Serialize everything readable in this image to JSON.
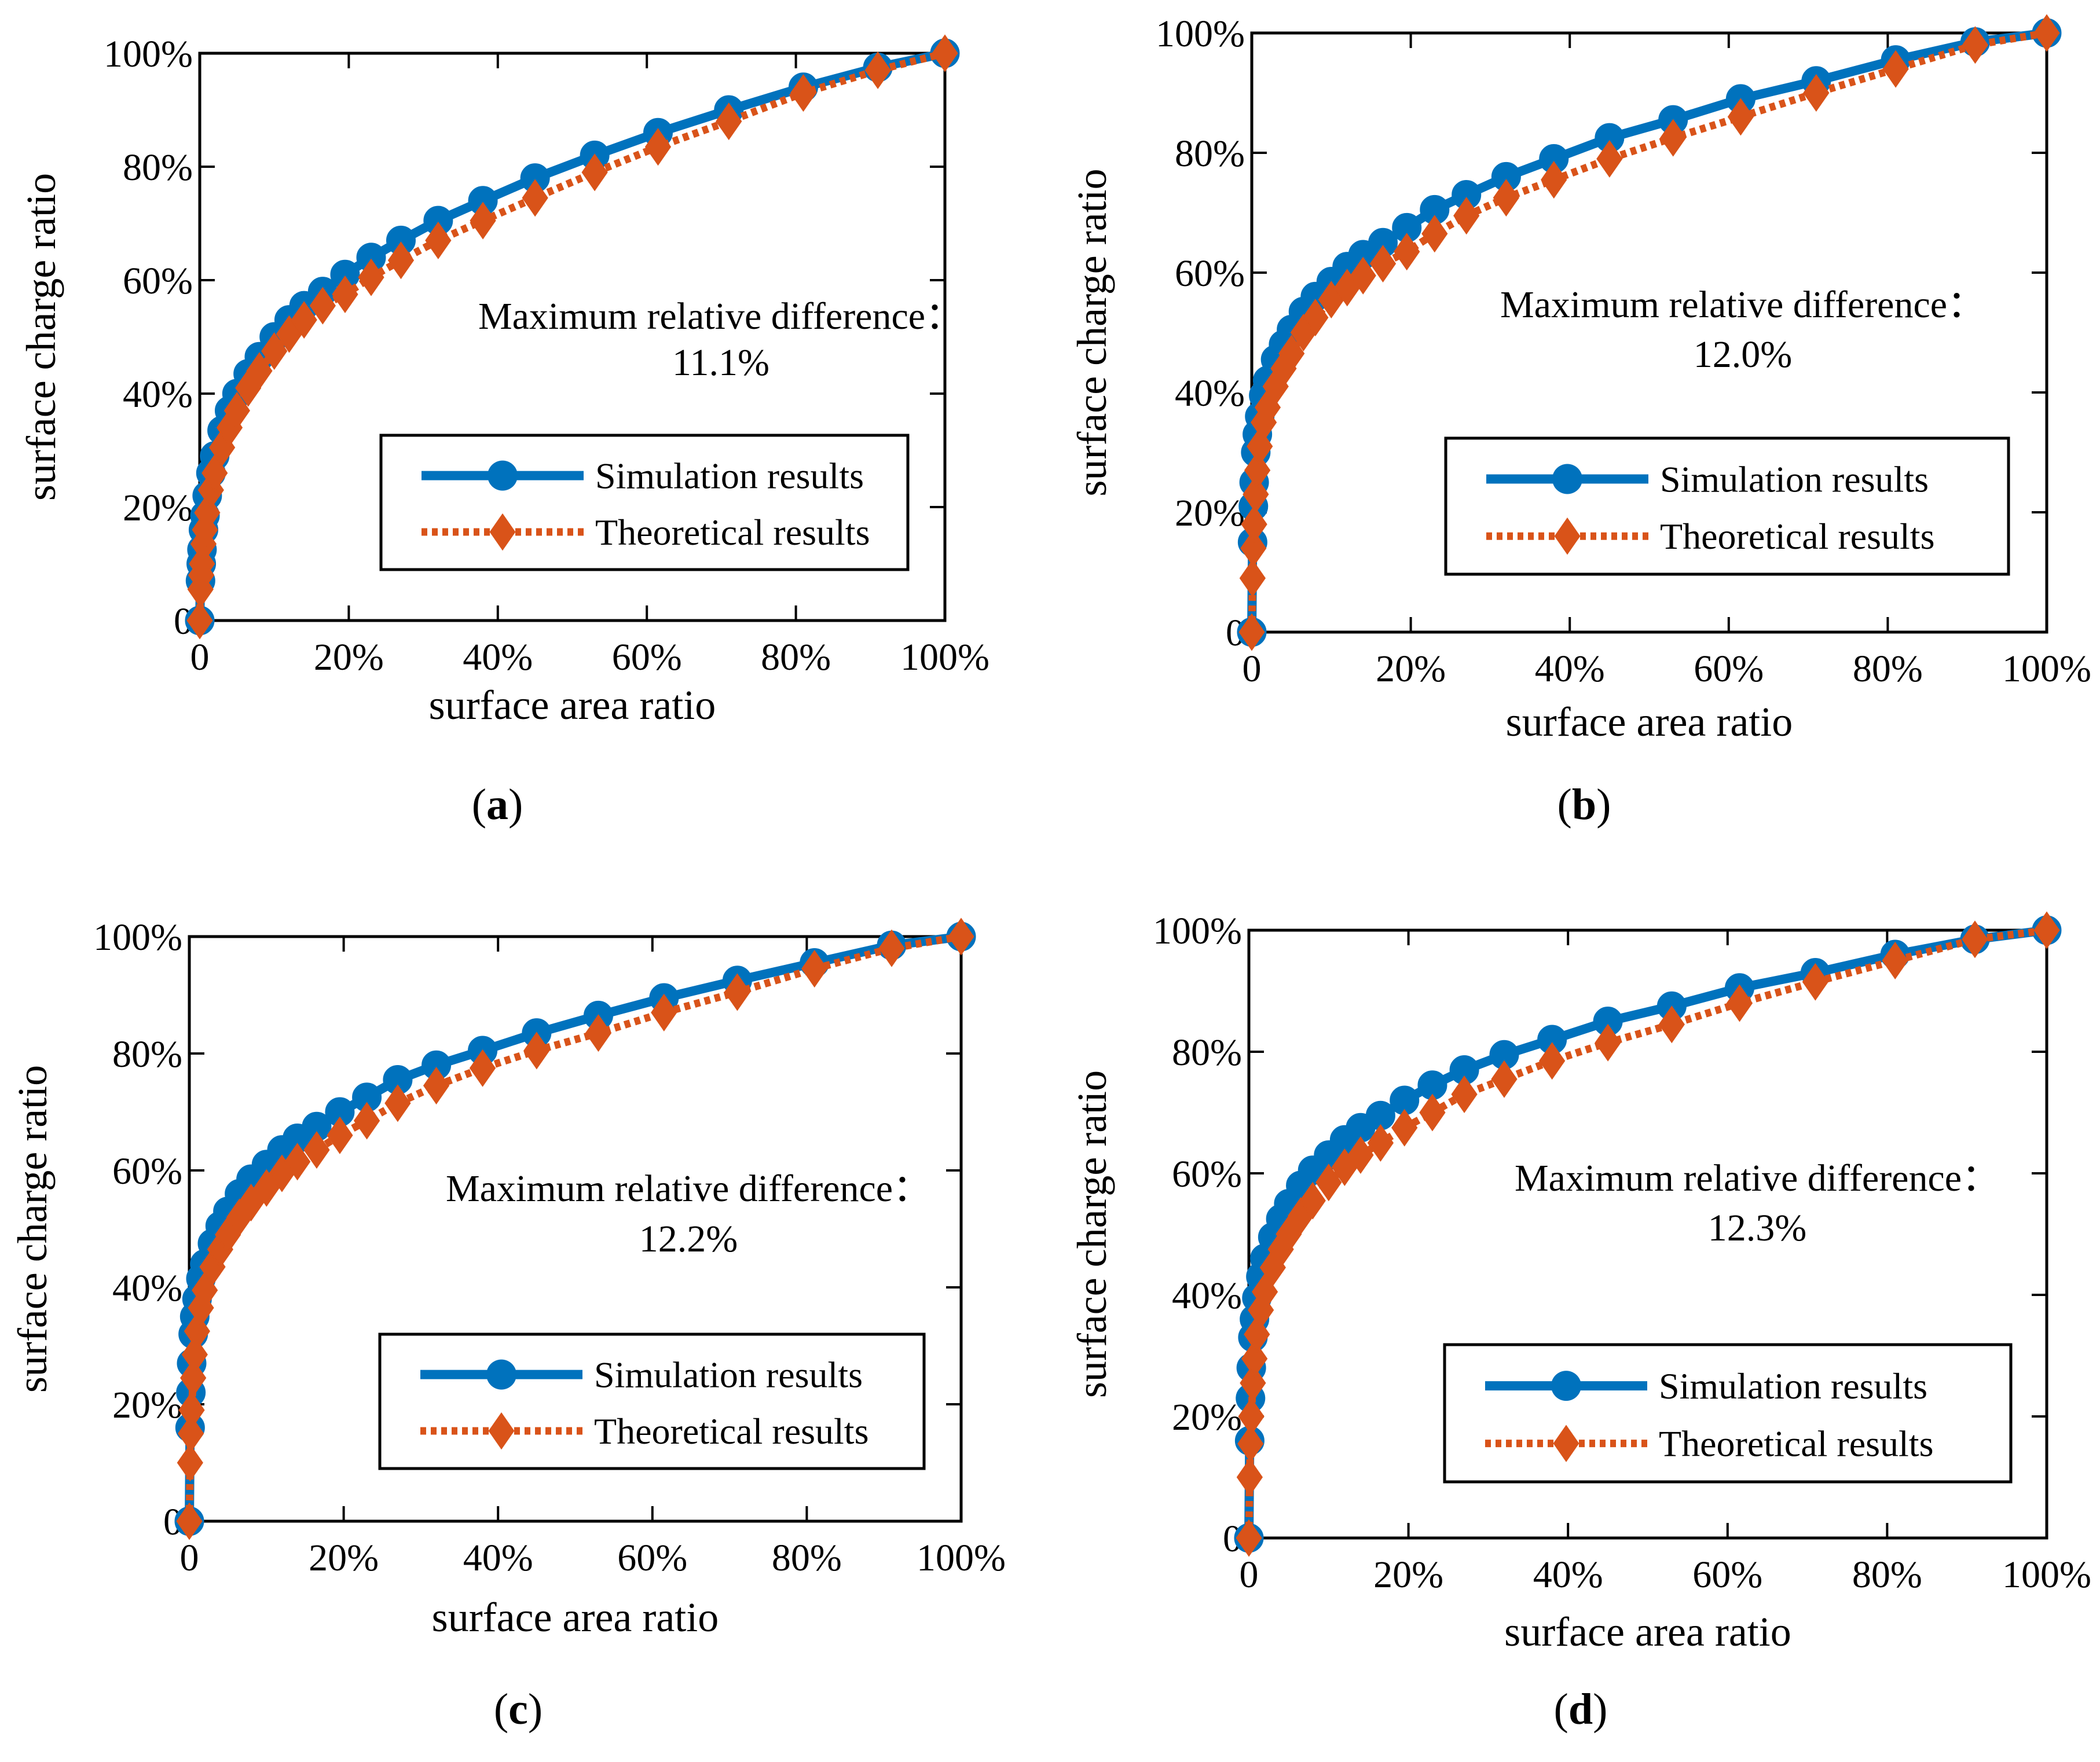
{
  "colors": {
    "simulation": "#0072BD",
    "theoretical": "#D95319",
    "axis": "#000000"
  },
  "chart_data": [
    {
      "type": "line",
      "panel_label": "(a)",
      "panel_letter": "a",
      "title": "",
      "xlabel": "surface area ratio",
      "ylabel": "surface charge ratio",
      "xlim": [
        0,
        100
      ],
      "ylim": [
        0,
        100
      ],
      "xticks": [
        "0",
        "20%",
        "40%",
        "60%",
        "80%",
        "100%"
      ],
      "yticks": [
        "0",
        "20%",
        "40%",
        "60%",
        "80%",
        "100%"
      ],
      "annotation": [
        "Maximum relative difference：",
        "11.1%"
      ],
      "legend": {
        "placement": "lower-right",
        "entries": [
          "Simulation results",
          "Theoretical results"
        ]
      },
      "x": [
        0,
        0.1,
        0.2,
        0.3,
        0.5,
        0.7,
        1,
        1.5,
        2,
        3,
        4,
        5,
        6.5,
        8,
        10,
        12,
        14,
        16.5,
        19.5,
        23,
        27,
        32,
        38,
        45,
        53,
        61.5,
        71,
        81,
        91,
        100
      ],
      "series": [
        {
          "name": "Simulation results",
          "marker": "circle",
          "line": "solid",
          "values": [
            0,
            7,
            10,
            12.5,
            16,
            18.5,
            22,
            26,
            29,
            33.5,
            37,
            40,
            43.5,
            46.5,
            50,
            53,
            55.5,
            58,
            61,
            64,
            67,
            70.5,
            74,
            78,
            82,
            86,
            90,
            94,
            97.5,
            100
          ]
        },
        {
          "name": "Theoretical results",
          "marker": "diamond",
          "line": "dotted",
          "values": [
            0,
            5.5,
            8,
            10,
            13.5,
            16,
            19,
            23,
            26,
            30.5,
            34,
            37,
            41,
            44,
            47.5,
            50.5,
            53,
            55.5,
            57.5,
            60.5,
            63.5,
            67,
            70.5,
            74.5,
            79,
            83.5,
            88,
            93,
            97,
            100
          ]
        }
      ]
    },
    {
      "type": "line",
      "panel_label": "(b)",
      "panel_letter": "b",
      "title": "",
      "xlabel": "surface area ratio",
      "ylabel": "surface charge ratio",
      "xlim": [
        0,
        100
      ],
      "ylim": [
        0,
        100
      ],
      "xticks": [
        "0",
        "20%",
        "40%",
        "60%",
        "80%",
        "100%"
      ],
      "yticks": [
        "0",
        "20%",
        "40%",
        "60%",
        "80%",
        "100%"
      ],
      "annotation": [
        "Maximum relative difference：",
        "12.0%"
      ],
      "legend": {
        "placement": "lower-right",
        "entries": [
          "Simulation results",
          "Theoretical results"
        ]
      },
      "x": [
        0,
        0.1,
        0.2,
        0.3,
        0.5,
        0.7,
        1,
        1.5,
        2,
        3,
        4,
        5,
        6.5,
        8,
        10,
        12,
        14,
        16.5,
        19.5,
        23,
        27,
        32,
        38,
        45,
        53,
        61.5,
        71,
        81,
        91,
        100
      ],
      "series": [
        {
          "name": "Simulation results",
          "marker": "circle",
          "line": "solid",
          "values": [
            0,
            15,
            21,
            25,
            30,
            33,
            36,
            39.5,
            42,
            45.5,
            48,
            50.5,
            53.5,
            56,
            58.5,
            61,
            63,
            65,
            67.5,
            70.5,
            73,
            76,
            79,
            82.5,
            85.5,
            89,
            92,
            95.5,
            98.5,
            100
          ]
        },
        {
          "name": "Theoretical results",
          "marker": "diamond",
          "line": "dotted",
          "values": [
            0,
            9,
            14,
            18,
            23,
            27,
            31,
            35,
            37.5,
            41,
            44,
            46.5,
            50,
            52.5,
            55.5,
            57.5,
            59.5,
            61.5,
            63.5,
            66.5,
            69.5,
            72.5,
            75.5,
            79,
            82.5,
            86,
            90,
            94,
            98,
            100
          ]
        }
      ]
    },
    {
      "type": "line",
      "panel_label": "(c)",
      "panel_letter": "c",
      "title": "",
      "xlabel": "surface area ratio",
      "ylabel": "surface charge ratio",
      "xlim": [
        0,
        100
      ],
      "ylim": [
        0,
        100
      ],
      "xticks": [
        "0",
        "20%",
        "40%",
        "60%",
        "80%",
        "100%"
      ],
      "yticks": [
        "0",
        "20%",
        "40%",
        "60%",
        "80%",
        "100%"
      ],
      "annotation": [
        "Maximum relative difference：",
        "12.2%"
      ],
      "legend": {
        "placement": "lower-right",
        "entries": [
          "Simulation results",
          "Theoretical results"
        ]
      },
      "x": [
        0,
        0.1,
        0.2,
        0.3,
        0.5,
        0.7,
        1,
        1.5,
        2,
        3,
        4,
        5,
        6.5,
        8,
        10,
        12,
        14,
        16.5,
        19.5,
        23,
        27,
        32,
        38,
        45,
        53,
        61.5,
        71,
        81,
        91,
        100
      ],
      "series": [
        {
          "name": "Simulation results",
          "marker": "circle",
          "line": "solid",
          "values": [
            0,
            16,
            22,
            27,
            32,
            35,
            38,
            41.5,
            44,
            47.5,
            50.5,
            53,
            56,
            58.5,
            61,
            63.5,
            65.5,
            67.5,
            70,
            72.5,
            75.5,
            78,
            80.5,
            83.5,
            86.5,
            89.5,
            92.5,
            95.5,
            98.5,
            100
          ]
        },
        {
          "name": "Theoretical results",
          "marker": "diamond",
          "line": "dotted",
          "values": [
            0,
            10,
            15,
            19,
            24.5,
            28.5,
            32.5,
            36.5,
            39.5,
            43.5,
            46.5,
            49,
            52,
            54.5,
            57,
            59.5,
            61.5,
            63.5,
            66,
            68.5,
            71.5,
            74.5,
            77.5,
            80.5,
            83.5,
            87,
            90.5,
            94.5,
            98,
            100
          ]
        }
      ]
    },
    {
      "type": "line",
      "panel_label": "(d)",
      "panel_letter": "d",
      "title": "",
      "xlabel": "surface area ratio",
      "ylabel": "surface charge ratio",
      "xlim": [
        0,
        100
      ],
      "ylim": [
        0,
        100
      ],
      "xticks": [
        "0",
        "20%",
        "40%",
        "60%",
        "80%",
        "100%"
      ],
      "yticks": [
        "0",
        "20%",
        "40%",
        "60%",
        "80%",
        "100%"
      ],
      "annotation": [
        "Maximum relative difference：",
        "12.3%"
      ],
      "legend": {
        "placement": "lower-right",
        "entries": [
          "Simulation results",
          "Theoretical results"
        ]
      },
      "x": [
        0,
        0.1,
        0.2,
        0.3,
        0.5,
        0.7,
        1,
        1.5,
        2,
        3,
        4,
        5,
        6.5,
        8,
        10,
        12,
        14,
        16.5,
        19.5,
        23,
        27,
        32,
        38,
        45,
        53,
        61.5,
        71,
        81,
        91,
        100
      ],
      "series": [
        {
          "name": "Simulation results",
          "marker": "circle",
          "line": "solid",
          "values": [
            0,
            16,
            23,
            28,
            33,
            36,
            39.5,
            43,
            46,
            49.5,
            52.5,
            55,
            58,
            60.5,
            63,
            65.5,
            67.5,
            69.5,
            72,
            74.5,
            77,
            79.5,
            82,
            85,
            87.5,
            90.5,
            93,
            96,
            98.5,
            100
          ]
        },
        {
          "name": "Theoretical results",
          "marker": "diamond",
          "line": "dotted",
          "values": [
            0,
            10,
            15.5,
            20,
            25.5,
            29.5,
            33.5,
            37.5,
            40.5,
            44.5,
            47.5,
            50,
            53,
            55.5,
            58.5,
            61,
            63,
            65,
            67.5,
            70,
            73,
            75.5,
            78.5,
            81.5,
            84.5,
            88,
            91.5,
            95,
            98.5,
            100
          ]
        }
      ]
    }
  ]
}
